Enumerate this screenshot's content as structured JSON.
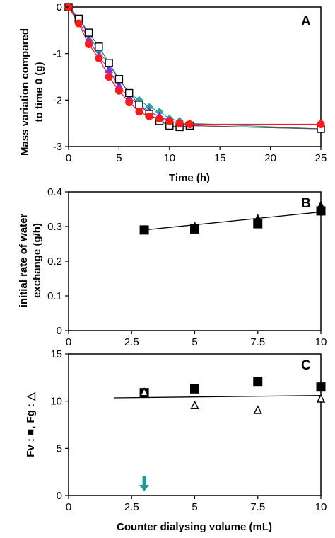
{
  "chart_data": [
    {
      "panel": "A",
      "type": "line",
      "xlabel": "Time (h)",
      "ylabel": [
        "Mass variation compared",
        "to time 0 (g)"
      ],
      "xlim": [
        0,
        25
      ],
      "ylim": [
        -3,
        0
      ],
      "xticks": [
        "0",
        "5",
        "10",
        "15",
        "20",
        "25"
      ],
      "yticks": [
        "-3",
        "-2",
        "-1",
        "0"
      ],
      "series": [
        {
          "marker": "diamond",
          "color": "#2aa6a6",
          "x": [
            0,
            1,
            2,
            3,
            4,
            5,
            6,
            7,
            8,
            9,
            10,
            11,
            12,
            25
          ],
          "y": [
            0,
            -0.25,
            -0.6,
            -0.95,
            -1.25,
            -1.55,
            -1.85,
            -2.0,
            -2.15,
            -2.25,
            -2.4,
            -2.45,
            -2.5,
            -2.62
          ]
        },
        {
          "marker": "triangle",
          "color": "#8a2be2",
          "x": [
            0,
            1,
            2,
            3,
            4,
            5,
            6,
            7,
            8,
            9,
            10,
            11,
            12,
            25
          ],
          "y": [
            0,
            -0.3,
            -0.7,
            -1.05,
            -1.35,
            -1.7,
            -1.95,
            -2.1,
            -2.25,
            -2.35,
            -2.45,
            -2.5,
            -2.55,
            -2.62
          ]
        },
        {
          "marker": "open-square",
          "color": "#000000",
          "x": [
            0,
            1,
            2,
            3,
            4,
            5,
            6,
            7,
            8,
            9,
            10,
            11,
            12,
            25
          ],
          "y": [
            0,
            -0.25,
            -0.55,
            -0.85,
            -1.2,
            -1.55,
            -1.85,
            -2.1,
            -2.3,
            -2.45,
            -2.55,
            -2.58,
            -2.55,
            -2.62
          ]
        },
        {
          "marker": "circle",
          "color": "#ff1a1a",
          "x": [
            0,
            1,
            2,
            3,
            4,
            5,
            6,
            7,
            8,
            9,
            10,
            11,
            12,
            25
          ],
          "y": [
            0,
            -0.35,
            -0.8,
            -1.1,
            -1.5,
            -1.8,
            -2.05,
            -2.25,
            -2.35,
            -2.4,
            -2.45,
            -2.5,
            -2.52,
            -2.52
          ]
        }
      ]
    },
    {
      "panel": "B",
      "type": "scatter",
      "xlabel": "",
      "ylabel": [
        "initial rate of water",
        "exchange (g/h)"
      ],
      "xlim": [
        0,
        10
      ],
      "ylim": [
        0,
        0.4
      ],
      "xticks": [
        "0",
        "2.5",
        "5",
        "7.5",
        "10"
      ],
      "yticks": [
        "0",
        "0.1",
        "0.2",
        "0.3",
        "0.4"
      ],
      "series": [
        {
          "marker": "filled-square",
          "color": "#000000",
          "x": [
            3,
            5,
            7.5,
            10
          ],
          "y": [
            0.29,
            0.293,
            0.308,
            0.345
          ]
        },
        {
          "marker": "filled-triangle",
          "color": "#000000",
          "x": [
            3,
            5,
            7.5,
            10
          ],
          "y": [
            0.29,
            0.3,
            0.322,
            0.36
          ]
        }
      ],
      "fit_line": {
        "x": [
          3,
          10
        ],
        "y": [
          0.29,
          0.342
        ]
      }
    },
    {
      "panel": "C",
      "type": "scatter",
      "xlabel": "Counter dialysing volume (mL)",
      "ylabel": [
        "Fv : ■, Fg : △"
      ],
      "xlim": [
        0,
        10
      ],
      "ylim": [
        0,
        15
      ],
      "xticks": [
        "0",
        "2.5",
        "5",
        "7.5",
        "10"
      ],
      "yticks": [
        "0",
        "5",
        "10",
        "15"
      ],
      "series": [
        {
          "marker": "filled-square",
          "color": "#000000",
          "x": [
            3,
            5,
            7.5,
            10
          ],
          "y": [
            10.9,
            11.3,
            12.1,
            11.5
          ]
        },
        {
          "marker": "open-triangle",
          "color": "#000000",
          "x": [
            3,
            5,
            7.5,
            10
          ],
          "y": [
            10.9,
            9.5,
            9.0,
            10.2
          ]
        }
      ],
      "fit_line": {
        "x": [
          1.8,
          10
        ],
        "y": [
          10.35,
          10.6
        ]
      },
      "annotation": {
        "type": "arrow",
        "color": "#1a9a9a",
        "x": 3
      }
    }
  ]
}
